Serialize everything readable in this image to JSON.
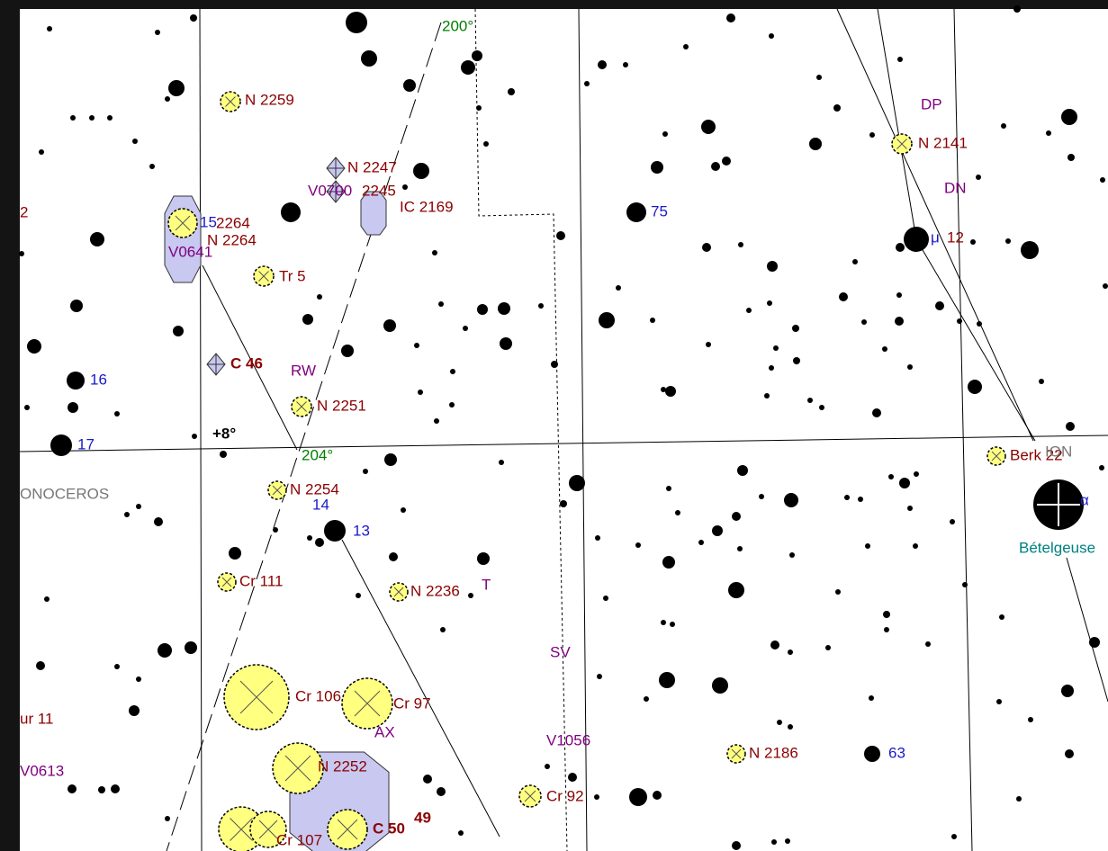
{
  "labels": [
    "N 2259",
    "N 2247",
    "V0700",
    "2245",
    "IC 2169",
    "15",
    "2264",
    "V0641",
    "N 2264",
    "Tr 5",
    "C 46",
    "RW",
    "N 2251",
    "+8°",
    "204°",
    "200°",
    "ONOCEROS",
    "N 2254",
    "14",
    "13",
    "16",
    "17",
    "2",
    "Cr 111",
    "N 2236",
    "T",
    "SV",
    "Cr 106",
    "Cr 97",
    "AX",
    "ur 11",
    "V0613",
    "V1056",
    "N 2252",
    "Cr 92",
    "C 50",
    "49",
    "Cr 107",
    "N 2186",
    "63",
    "75",
    "DP",
    "N 2141",
    "DN",
    "μ",
    "12",
    "Berk 22",
    "ION",
    "α",
    "Bételgeuse"
  ]
}
